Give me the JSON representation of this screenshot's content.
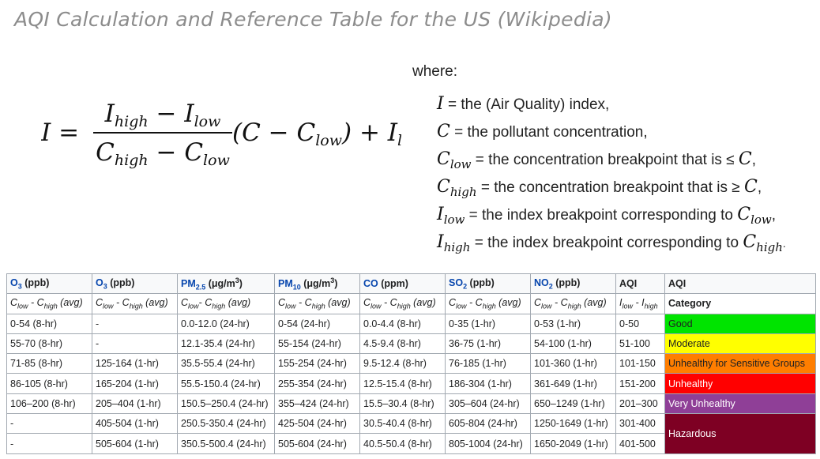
{
  "title": "AQI Calculation and Reference Table for the US (Wikipedia)",
  "formula": {
    "lhs": "I =",
    "numerator": [
      "I",
      "high",
      " − ",
      "I",
      "low"
    ],
    "denominator": [
      "C",
      "high",
      " − ",
      "C",
      "low"
    ],
    "tail": "(C − C",
    "tail_sub": "low",
    "tail_end": ") + I",
    "tail_end_sub": "low"
  },
  "where_label": "where:",
  "definitions": [
    {
      "sym": "I",
      "sub": "",
      "text": " = the (Air Quality) index,",
      "after_sym": "",
      "after_sub": "",
      "end": ""
    },
    {
      "sym": "C",
      "sub": "",
      "text": " = the pollutant concentration,",
      "after_sym": "",
      "after_sub": "",
      "end": ""
    },
    {
      "sym": "C",
      "sub": "low",
      "text": " = the concentration breakpoint that is ≤ ",
      "after_sym": "C",
      "after_sub": "",
      "end": ","
    },
    {
      "sym": "C",
      "sub": "high",
      "text": " = the concentration breakpoint that is ≥ ",
      "after_sym": "C",
      "after_sub": "",
      "end": ","
    },
    {
      "sym": "I",
      "sub": "low",
      "text": " = the index breakpoint corresponding to ",
      "after_sym": "C",
      "after_sub": "low",
      "end": ","
    },
    {
      "sym": "I",
      "sub": "high",
      "text": " = the index breakpoint corresponding to ",
      "after_sym": "C",
      "after_sub": "high",
      "end": "."
    }
  ],
  "table": {
    "headers": [
      {
        "main": "O",
        "sub": "3",
        "sup": "",
        "unit": " (ppb)",
        "link": true
      },
      {
        "main": "O",
        "sub": "3",
        "sup": "",
        "unit": " (ppb)",
        "link": true
      },
      {
        "main": "PM",
        "sub": "2.5",
        "sup": "3",
        "unit_pre": " (μg/m",
        "unit_post": ")",
        "link": true
      },
      {
        "main": "PM",
        "sub": "10",
        "sup": "3",
        "unit_pre": " (μg/m",
        "unit_post": ")",
        "link": true
      },
      {
        "main": "CO",
        "sub": "",
        "sup": "",
        "unit": " (ppm)",
        "link": true
      },
      {
        "main": "SO",
        "sub": "2",
        "sup": "",
        "unit": " (ppb)",
        "link": true
      },
      {
        "main": "NO",
        "sub": "2",
        "sup": "",
        "unit": " (ppb)",
        "link": true
      },
      {
        "main": "AQI",
        "sub": "",
        "sup": "",
        "unit": "",
        "link": false
      },
      {
        "main": "AQI",
        "sub": "",
        "sup": "",
        "unit": "",
        "link": false
      }
    ],
    "subheaders": [
      "C_low - C_high (avg)",
      "C_low - C_high (avg)",
      "C_low- C_high (avg)",
      "C_low - C_high (avg)",
      "C_low - C_high (avg)",
      "C_low - C_high (avg)",
      "C_low - C_high (avg)",
      "I_low - I_high",
      "Category"
    ],
    "rows": [
      [
        "0-54 (8-hr)",
        "-",
        "0.0-12.0 (24-hr)",
        "0-54 (24-hr)",
        "0.0-4.4 (8-hr)",
        "0-35 (1-hr)",
        "0-53 (1-hr)",
        "0-50"
      ],
      [
        "55-70 (8-hr)",
        "-",
        "12.1-35.4 (24-hr)",
        "55-154 (24-hr)",
        "4.5-9.4 (8-hr)",
        "36-75 (1-hr)",
        "54-100 (1-hr)",
        "51-100"
      ],
      [
        "71-85 (8-hr)",
        "125-164 (1-hr)",
        "35.5-55.4 (24-hr)",
        "155-254 (24-hr)",
        "9.5-12.4 (8-hr)",
        "76-185 (1-hr)",
        "101-360 (1-hr)",
        "101-150"
      ],
      [
        "86-105 (8-hr)",
        "165-204 (1-hr)",
        "55.5-150.4 (24-hr)",
        "255-354 (24-hr)",
        "12.5-15.4 (8-hr)",
        "186-304 (1-hr)",
        "361-649 (1-hr)",
        "151-200"
      ],
      [
        "106–200 (8-hr)",
        "205–404 (1-hr)",
        "150.5–250.4 (24-hr)",
        "355–424 (24-hr)",
        "15.5–30.4 (8-hr)",
        "305–604 (24-hr)",
        "650–1249 (1-hr)",
        "201–300"
      ],
      [
        "-",
        "405-504 (1-hr)",
        "250.5-350.4 (24-hr)",
        "425-504 (24-hr)",
        "30.5-40.4 (8-hr)",
        "605-804 (24-hr)",
        "1250-1649 (1-hr)",
        "301-400"
      ],
      [
        "-",
        "505-604 (1-hr)",
        "350.5-500.4 (24-hr)",
        "505-604 (24-hr)",
        "40.5-50.4 (8-hr)",
        "805-1004 (24-hr)",
        "1650-2049 (1-hr)",
        "401-500"
      ]
    ],
    "categories": [
      {
        "label": "Good",
        "bg": "#00e400",
        "color": "#202122",
        "rowspan": 1
      },
      {
        "label": "Moderate",
        "bg": "#ffff00",
        "color": "#202122",
        "rowspan": 1
      },
      {
        "label": "Unhealthy for Sensitive Groups",
        "bg": "#ff7e00",
        "color": "#202122",
        "rowspan": 1
      },
      {
        "label": "Unhealthy",
        "bg": "#ff0000",
        "color": "#ffffff",
        "rowspan": 1
      },
      {
        "label": "Very Unhealthy",
        "bg": "#8f3f97",
        "color": "#ffffff",
        "rowspan": 1
      },
      {
        "label": "Hazardous",
        "bg": "#7e0023",
        "color": "#ffffff",
        "rowspan": 2
      }
    ]
  }
}
